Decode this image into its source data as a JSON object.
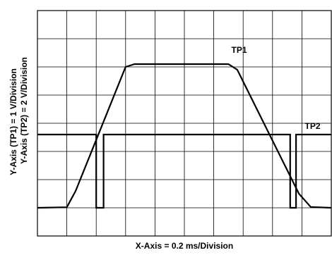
{
  "chart_data": {
    "type": "line",
    "xlabel": "X-Axis = 0.2 ms/Division",
    "ylabels": [
      "Y-Axis (TP1) = 1 V/Division",
      "Y-Axis (TP2) = 2 V/Division"
    ],
    "grid": true,
    "x_divisions": 10,
    "y_divisions": 8,
    "series": [
      {
        "name": "TP1",
        "unit_scale": "1 V/Division",
        "points": [
          [
            0,
            0
          ],
          [
            1.0,
            0.02
          ],
          [
            1.3,
            0.6
          ],
          [
            3.0,
            5.0
          ],
          [
            3.3,
            5.1
          ],
          [
            6.5,
            5.1
          ],
          [
            6.8,
            4.9
          ],
          [
            8.9,
            0.5
          ],
          [
            9.3,
            0.03
          ],
          [
            10.0,
            0
          ]
        ]
      },
      {
        "name": "TP2",
        "unit_scale": "2 V/Division",
        "points": [
          [
            0,
            2.6
          ],
          [
            2.0,
            2.6
          ],
          [
            2.0,
            0
          ],
          [
            2.25,
            0
          ],
          [
            2.25,
            2.6
          ],
          [
            8.6,
            2.6
          ],
          [
            8.6,
            0
          ],
          [
            8.8,
            0
          ],
          [
            8.8,
            2.6
          ],
          [
            10.0,
            2.6
          ]
        ]
      }
    ],
    "annotations": [
      {
        "text": "TP1",
        "x": 6.6,
        "y": 5.5
      },
      {
        "text": "TP2",
        "x": 9.1,
        "y": 2.8
      }
    ]
  }
}
